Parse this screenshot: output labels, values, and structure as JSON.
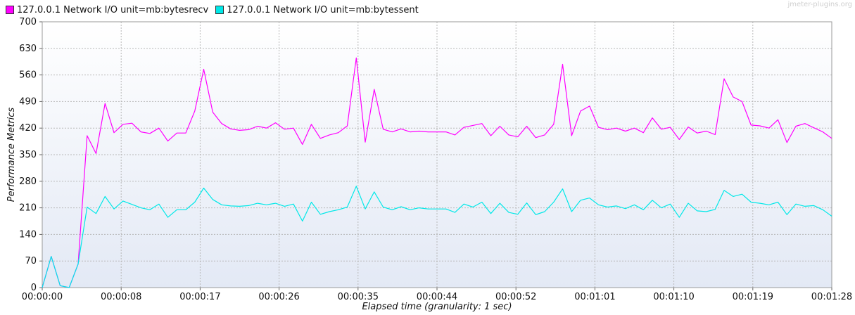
{
  "watermark": "jmeter-plugins.org",
  "colors": {
    "bytesrecv": "#ff00ff",
    "bytessent": "#00e8e8",
    "background_top": "#ffffff",
    "background_bottom": "#e3e9f5",
    "grid": "#b8b8b8"
  },
  "chart_data": {
    "type": "line",
    "xlabel": "Elapsed time (granularity: 1 sec)",
    "ylabel": "Performance Metrics",
    "ylim": [
      0,
      700
    ],
    "xlim": [
      "00:00:00",
      "00:01:28"
    ],
    "y_ticks": [
      "0",
      "70",
      "140",
      "210",
      "280",
      "350",
      "420",
      "490",
      "560",
      "630",
      "700"
    ],
    "x_ticks": [
      "00:00:00",
      "00:00:08",
      "00:00:17",
      "00:00:26",
      "00:00:35",
      "00:00:44",
      "00:00:52",
      "00:01:01",
      "00:01:10",
      "00:01:19",
      "00:01:28"
    ],
    "grid": true,
    "legend_position": "top-left",
    "series": [
      {
        "name": "127.0.0.1 Network I/O unit=mb:bytesrecv",
        "color": "#ff00ff",
        "values": [
          0,
          82,
          5,
          0,
          62,
          400,
          353,
          485,
          408,
          430,
          433,
          410,
          406,
          420,
          386,
          407,
          407,
          465,
          575,
          462,
          432,
          418,
          414,
          416,
          425,
          420,
          434,
          417,
          420,
          377,
          430,
          393,
          402,
          408,
          426,
          605,
          383,
          522,
          417,
          410,
          418,
          410,
          412,
          410,
          410,
          410,
          402,
          422,
          427,
          432,
          400,
          425,
          402,
          397,
          425,
          395,
          402,
          430,
          588,
          400,
          465,
          478,
          422,
          416,
          420,
          412,
          420,
          408,
          447,
          417,
          422,
          390,
          423,
          407,
          412,
          403,
          550,
          502,
          490,
          428,
          426,
          420,
          442,
          382,
          425,
          432,
          421,
          410,
          393
        ]
      },
      {
        "name": "127.0.0.1 Network I/O unit=mb:bytessent",
        "color": "#00e8e8",
        "values": [
          0,
          82,
          5,
          0,
          62,
          212,
          195,
          240,
          207,
          228,
          219,
          210,
          205,
          220,
          185,
          205,
          205,
          225,
          262,
          232,
          218,
          215,
          214,
          216,
          222,
          218,
          222,
          214,
          220,
          175,
          225,
          193,
          200,
          205,
          212,
          267,
          207,
          252,
          212,
          205,
          213,
          205,
          210,
          207,
          207,
          207,
          198,
          220,
          212,
          225,
          195,
          222,
          198,
          193,
          223,
          192,
          200,
          225,
          260,
          200,
          230,
          236,
          218,
          212,
          215,
          208,
          218,
          205,
          230,
          210,
          220,
          185,
          222,
          202,
          200,
          206,
          256,
          240,
          246,
          225,
          222,
          218,
          225,
          192,
          220,
          214,
          216,
          205,
          188
        ]
      }
    ]
  }
}
